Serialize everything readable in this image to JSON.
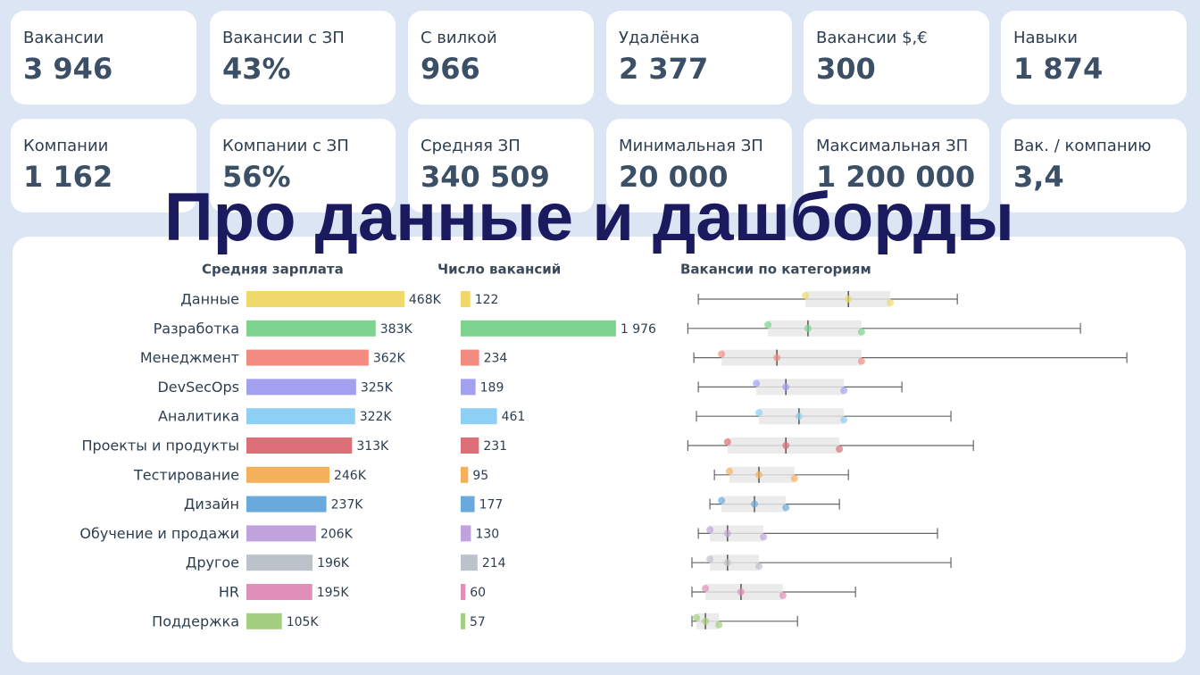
{
  "kpis": [
    {
      "label": "Вакансии",
      "value": "3 946"
    },
    {
      "label": "Вакансии с ЗП",
      "value": "43%"
    },
    {
      "label": "С вилкой",
      "value": "966"
    },
    {
      "label": "Удалёнка",
      "value": "2 377"
    },
    {
      "label": "Вакансии $,€",
      "value": "300"
    },
    {
      "label": "Навыки",
      "value": "1 874"
    },
    {
      "label": "Компании",
      "value": "1 162"
    },
    {
      "label": "Компании с ЗП",
      "value": "56%"
    },
    {
      "label": "Средняя ЗП",
      "value": "340 509"
    },
    {
      "label": "Минимальная ЗП",
      "value": "20 000"
    },
    {
      "label": "Максимальная ЗП",
      "value": "1 200 000"
    },
    {
      "label": "Вак. / компанию",
      "value": "3,4"
    }
  ],
  "overlay_title": "Про данные и дашборды",
  "chart_data": [
    {
      "type": "hbar",
      "title": "Средняя зарплата",
      "categories": [
        "Данные",
        "Разработка",
        "Менеджмент",
        "DevSecOps",
        "Аналитика",
        "Проекты и продукты",
        "Тестирование",
        "Дизайн",
        "Обучение и продажи",
        "Другое",
        "HR",
        "Поддержка"
      ],
      "values": [
        468000,
        383000,
        362000,
        325000,
        322000,
        313000,
        246000,
        237000,
        206000,
        196000,
        195000,
        105000
      ],
      "value_labels": [
        "468K",
        "383K",
        "362K",
        "325K",
        "322K",
        "313K",
        "246K",
        "237K",
        "206K",
        "196K",
        "195K",
        "105K"
      ],
      "colors": [
        "#f0d96a",
        "#7dd38f",
        "#f28b80",
        "#a3a0f0",
        "#8ecff5",
        "#dc6f78",
        "#f5b05c",
        "#6aa9dc",
        "#c0a3dc",
        "#bcc2c9",
        "#df8fb8",
        "#a5cf80"
      ],
      "xlim": [
        0,
        500000
      ]
    },
    {
      "type": "hbar",
      "title": "Число вакансий",
      "values": [
        122,
        1976,
        234,
        189,
        461,
        231,
        95,
        177,
        130,
        214,
        60,
        57
      ],
      "value_labels": [
        "122",
        "1 976",
        "234",
        "189",
        "461",
        "231",
        "95",
        "177",
        "130",
        "214",
        "60",
        "57"
      ],
      "xlim": [
        0,
        2000
      ]
    },
    {
      "type": "box",
      "title": "Вакансии по категориям",
      "min": [
        48000,
        20000,
        36000,
        48000,
        43000,
        20000,
        91000,
        79000,
        48000,
        31000,
        31000,
        31000
      ],
      "q1": [
        334000,
        234000,
        110000,
        203000,
        210000,
        126000,
        131000,
        110000,
        79000,
        79000,
        67000,
        43000
      ],
      "median": [
        449000,
        341000,
        258000,
        282000,
        317000,
        282000,
        210000,
        198000,
        126000,
        126000,
        162000,
        67000
      ],
      "q3": [
        561000,
        484000,
        484000,
        437000,
        437000,
        425000,
        305000,
        282000,
        222000,
        210000,
        274000,
        103000
      ],
      "max": [
        740000,
        1069000,
        1193000,
        592000,
        723000,
        783000,
        449000,
        425000,
        687000,
        723000,
        468000,
        313000
      ],
      "xlim": [
        0,
        1200000
      ]
    }
  ]
}
